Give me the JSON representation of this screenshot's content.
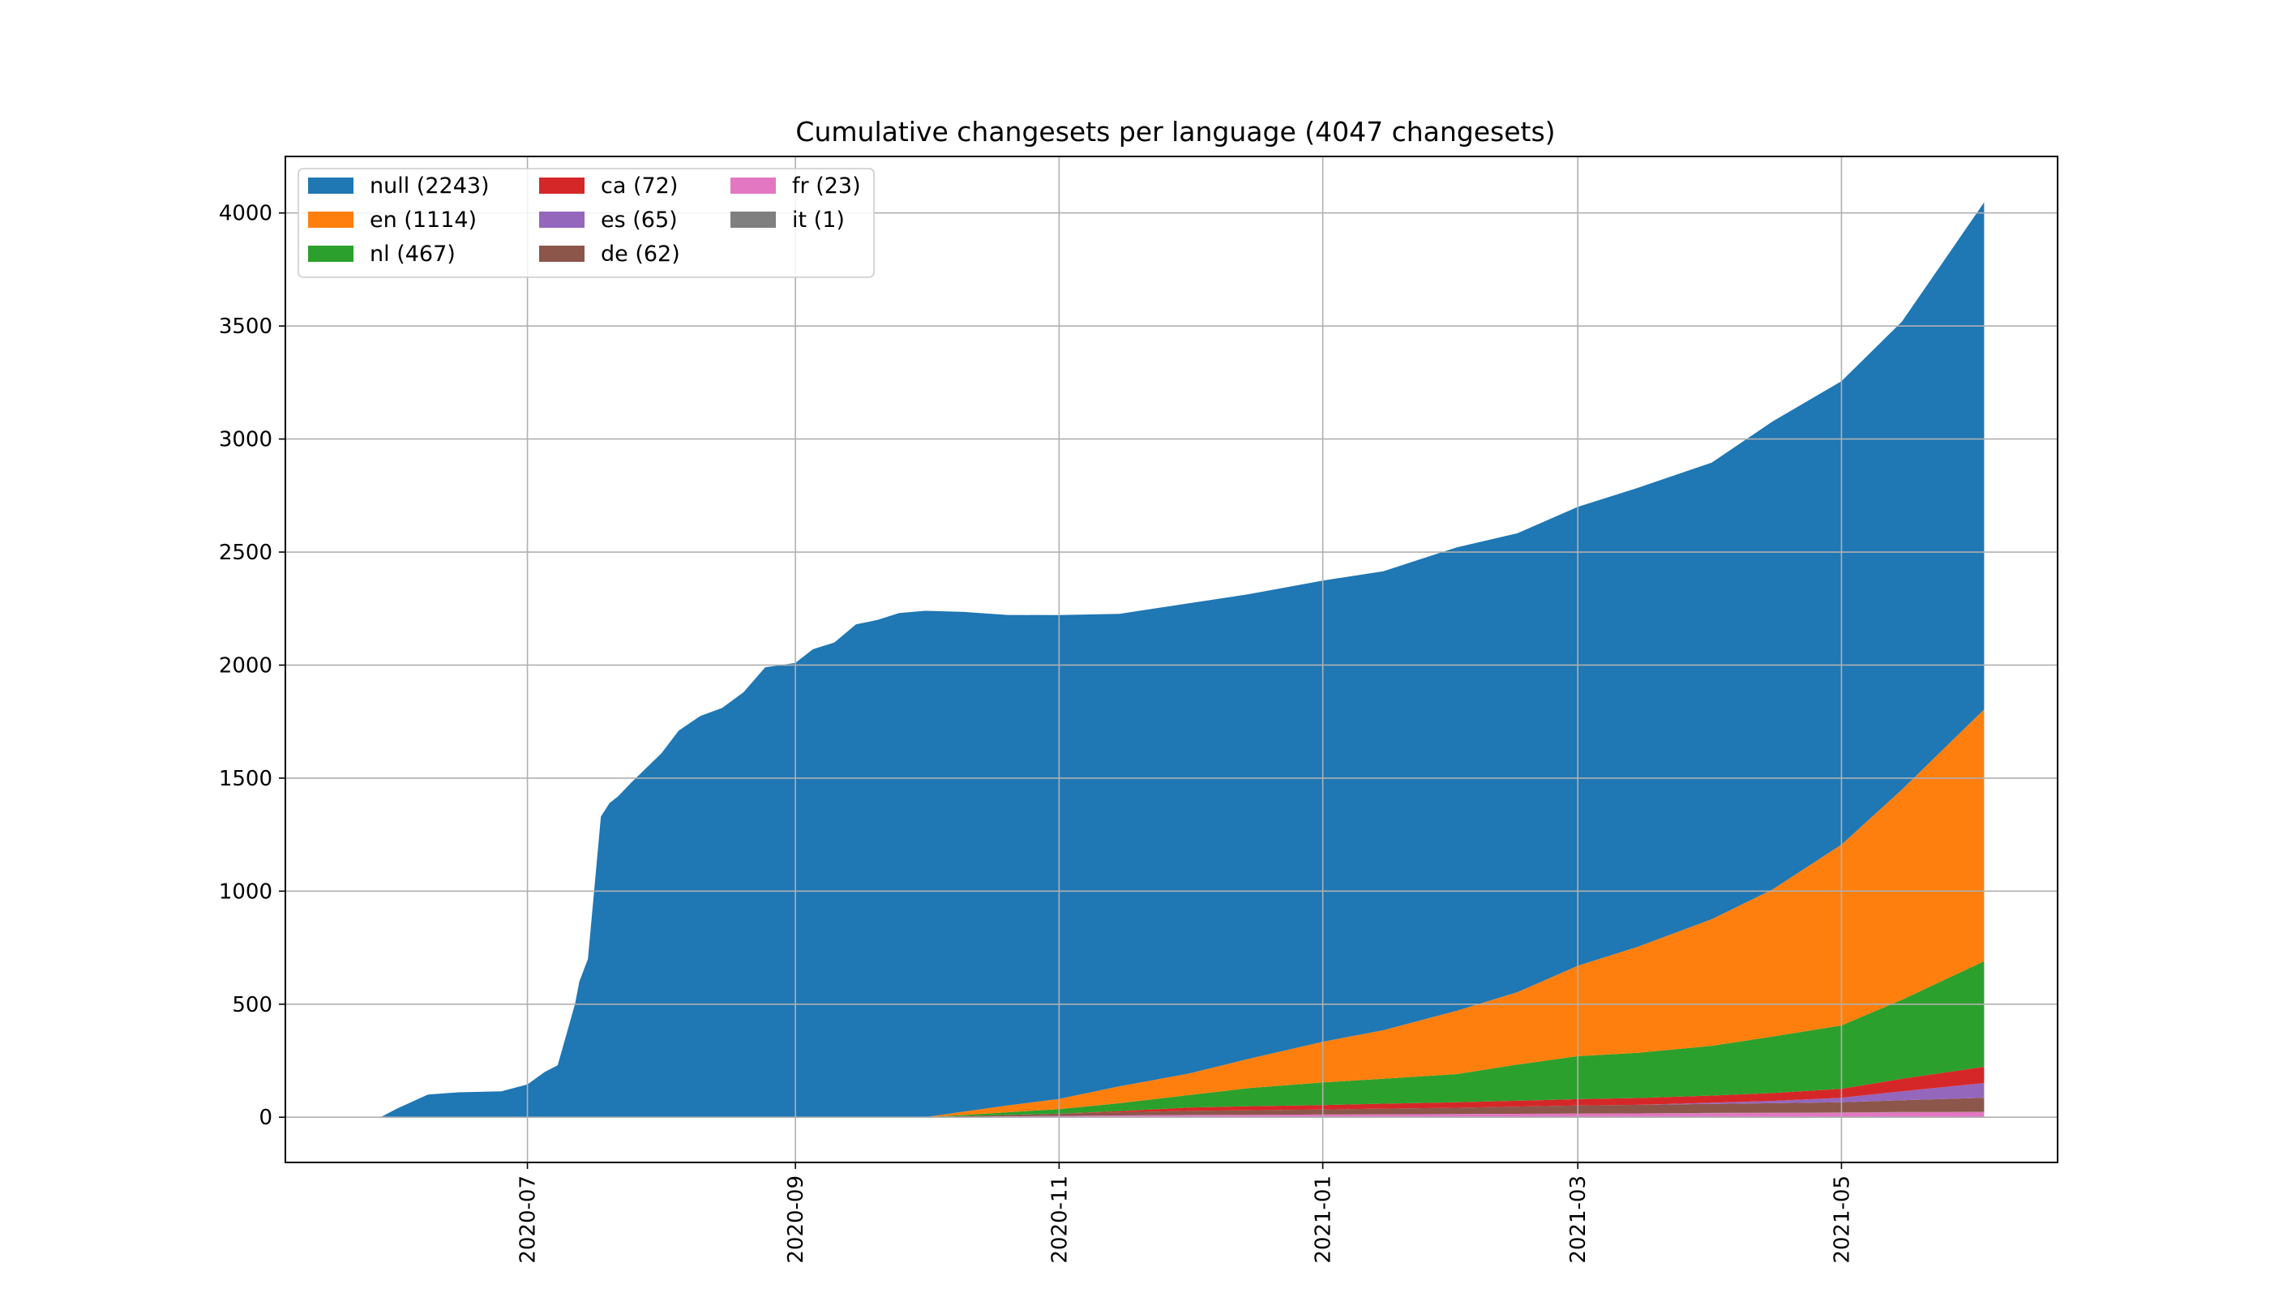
{
  "chart_data": {
    "type": "area",
    "stacked": true,
    "title": "Cumulative changesets per language (4047 changesets)",
    "xlabel": "",
    "ylabel": "",
    "xlim": [
      "2020-05-06",
      "2021-06-20"
    ],
    "ylim": [
      -200,
      4250
    ],
    "grid": true,
    "legend": "top-left",
    "x_ticks": [
      "2020-07-01",
      "2020-09-01",
      "2020-11-01",
      "2021-01-01",
      "2021-03-01",
      "2021-05-01"
    ],
    "x_tick_labels": [
      "2020-07",
      "2020-09",
      "2020-11",
      "2021-01",
      "2021-03",
      "2021-05"
    ],
    "y_ticks": [
      0,
      500,
      1000,
      1500,
      2000,
      2500,
      3000,
      3500,
      4000
    ],
    "y_tick_labels": [
      "0",
      "500",
      "1000",
      "1500",
      "2000",
      "2500",
      "3000",
      "3500",
      "4000"
    ],
    "x": [
      "2020-05-28",
      "2020-06-01",
      "2020-06-08",
      "2020-06-15",
      "2020-06-25",
      "2020-07-01",
      "2020-07-05",
      "2020-07-08",
      "2020-07-12",
      "2020-07-13",
      "2020-07-15",
      "2020-07-18",
      "2020-07-20",
      "2020-07-22",
      "2020-07-25",
      "2020-08-01",
      "2020-08-05",
      "2020-08-10",
      "2020-08-15",
      "2020-08-20",
      "2020-08-25",
      "2020-09-01",
      "2020-09-05",
      "2020-09-10",
      "2020-09-15",
      "2020-09-20",
      "2020-09-25",
      "2020-10-01",
      "2020-10-10",
      "2020-10-20",
      "2020-11-01",
      "2020-11-15",
      "2020-12-01",
      "2020-12-15",
      "2021-01-01",
      "2021-01-15",
      "2021-02-01",
      "2021-02-15",
      "2021-03-01",
      "2021-03-15",
      "2021-04-01",
      "2021-04-15",
      "2021-05-01",
      "2021-05-15",
      "2021-06-03"
    ],
    "series": [
      {
        "name": "fr (23)",
        "color": "#e377c2",
        "values": [
          0,
          0,
          0,
          0,
          0,
          0,
          0,
          0,
          0,
          0,
          0,
          0,
          0,
          0,
          0,
          0,
          0,
          0,
          0,
          0,
          0,
          0,
          0,
          0,
          0,
          0,
          0,
          0,
          2,
          4,
          6,
          8,
          10,
          11,
          12,
          13,
          14,
          15,
          16,
          17,
          18,
          19,
          20,
          22,
          23
        ]
      },
      {
        "name": "it (1)",
        "color": "#7f7f7f",
        "values": [
          0,
          0,
          0,
          0,
          0,
          0,
          0,
          0,
          0,
          0,
          0,
          0,
          0,
          0,
          0,
          0,
          0,
          0,
          0,
          0,
          0,
          0,
          0,
          0,
          0,
          0,
          0,
          0,
          0,
          0,
          0,
          0,
          0,
          0,
          0,
          0,
          0,
          0,
          0,
          0,
          1,
          1,
          1,
          1,
          1
        ]
      },
      {
        "name": "de (62)",
        "color": "#8c564b",
        "values": [
          0,
          0,
          0,
          0,
          0,
          0,
          0,
          0,
          0,
          0,
          0,
          0,
          0,
          0,
          0,
          0,
          0,
          0,
          0,
          0,
          0,
          0,
          0,
          0,
          0,
          0,
          0,
          0,
          3,
          6,
          10,
          14,
          18,
          20,
          22,
          25,
          28,
          32,
          36,
          38,
          40,
          42,
          45,
          52,
          62
        ]
      },
      {
        "name": "es (65)",
        "color": "#9467bd",
        "values": [
          0,
          0,
          0,
          0,
          0,
          0,
          0,
          0,
          0,
          0,
          0,
          0,
          0,
          0,
          0,
          0,
          0,
          0,
          0,
          0,
          0,
          0,
          0,
          0,
          0,
          0,
          0,
          0,
          0,
          0,
          0,
          0,
          0,
          0,
          0,
          0,
          0,
          0,
          0,
          0,
          5,
          10,
          20,
          40,
          65
        ]
      },
      {
        "name": "ca (72)",
        "color": "#d62728",
        "values": [
          0,
          0,
          0,
          0,
          0,
          0,
          0,
          0,
          0,
          0,
          0,
          0,
          0,
          0,
          0,
          0,
          0,
          0,
          0,
          0,
          0,
          0,
          0,
          0,
          0,
          0,
          0,
          0,
          0,
          0,
          0,
          5,
          15,
          18,
          20,
          22,
          24,
          26,
          28,
          30,
          32,
          35,
          40,
          55,
          72
        ]
      },
      {
        "name": "nl (467)",
        "color": "#2ca02c",
        "values": [
          0,
          0,
          0,
          0,
          0,
          0,
          0,
          0,
          0,
          0,
          0,
          0,
          0,
          0,
          0,
          0,
          0,
          0,
          0,
          0,
          0,
          0,
          0,
          0,
          0,
          0,
          0,
          0,
          5,
          12,
          20,
          35,
          55,
          80,
          100,
          110,
          125,
          160,
          190,
          200,
          220,
          250,
          280,
          350,
          467
        ]
      },
      {
        "name": "en (1114)",
        "color": "#ff7f0e",
        "values": [
          0,
          0,
          0,
          0,
          0,
          0,
          0,
          0,
          0,
          0,
          0,
          0,
          0,
          0,
          0,
          0,
          0,
          0,
          0,
          0,
          0,
          0,
          0,
          0,
          0,
          0,
          0,
          0,
          15,
          30,
          45,
          75,
          95,
          130,
          180,
          215,
          280,
          320,
          400,
          470,
          560,
          650,
          800,
          930,
          1114
        ]
      },
      {
        "name": "null (2243)",
        "color": "#1f77b4",
        "values": [
          0,
          40,
          100,
          110,
          115,
          145,
          200,
          230,
          500,
          600,
          700,
          1330,
          1390,
          1420,
          1480,
          1610,
          1710,
          1775,
          1810,
          1880,
          1990,
          2010,
          2070,
          2100,
          2180,
          2200,
          2230,
          2240,
          2210,
          2170,
          2140,
          2090,
          2080,
          2055,
          2040,
          2030,
          2050,
          2030,
          2030,
          2030,
          2020,
          2070,
          2050,
          2070,
          2243
        ]
      }
    ],
    "legend_order": [
      "null (2243)",
      "en (1114)",
      "nl (467)",
      "ca (72)",
      "es (65)",
      "de (62)",
      "fr (23)",
      "it (1)"
    ]
  }
}
